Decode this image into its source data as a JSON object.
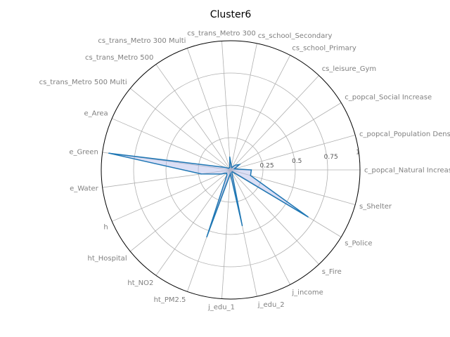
{
  "chart_data": {
    "type": "radar",
    "title": "Cluster6",
    "axes": [
      "c_popcal_Natural Increase",
      "c_popcal_Population Density",
      "c_popcal_Social Increase",
      "cs_leisure_Gym",
      "cs_school_Primary",
      "cs_school_Secondary",
      "cs_trans_Metro 300",
      "cs_trans_Metro 300 Multi",
      "cs_trans_Metro 500",
      "cs_trans_Metro 500 Multi",
      "e_Area",
      "e_Green",
      "e_Water",
      "h",
      "ht_Hospital",
      "ht_NO2",
      "ht_PM2.5",
      "j_edu_1",
      "j_edu_2",
      "j_income",
      "s_Fire",
      "s_Police",
      "s_Shelter"
    ],
    "series": [
      {
        "values": [
          0.16,
          0.03,
          0.08,
          0.05,
          0.02,
          0.03,
          0.1,
          0.02,
          0.02,
          0.02,
          0.05,
          0.95,
          0.23,
          0.08,
          0.04,
          0.05,
          0.55,
          0.03,
          0.44,
          0.02,
          0.02,
          0.7,
          0.16
        ]
      }
    ],
    "r_ticks": [
      "0.25",
      "0.5",
      "0.75",
      "1"
    ],
    "rlim": [
      0,
      1
    ],
    "grid": true,
    "colors": {
      "line": "#1f77b4",
      "fill": "#b0b7e8",
      "grid": "#b0b0b0",
      "outer_ring": "#000000"
    }
  }
}
